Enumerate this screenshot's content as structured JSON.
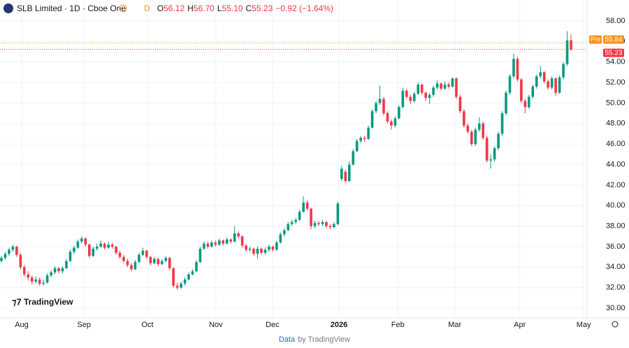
{
  "header": {
    "title": "SLB Limited · 1D · Cboe One",
    "flag": "D",
    "o_label": "O",
    "open": "56.12",
    "h_label": "H",
    "high": "56.70",
    "l_label": "L",
    "low": "55.10",
    "c_label": "C",
    "close": "55.23",
    "change": "−0.92 (−1.64%)"
  },
  "logo": "TradingView",
  "footer": {
    "link": "Data",
    "text": "by TradingView"
  },
  "chart_data": {
    "type": "candlestick",
    "up_color": "#089981",
    "down_color": "#f23645",
    "grid": true,
    "ylim": [
      29.05,
      60.04
    ],
    "yticks": [
      {
        "value": 30,
        "label": "30.00"
      },
      {
        "value": 32,
        "label": "32.00"
      },
      {
        "value": 34,
        "label": "34.00"
      },
      {
        "value": 36,
        "label": "36.00"
      },
      {
        "value": 38,
        "label": "38.00"
      },
      {
        "value": 40,
        "label": "40.00"
      },
      {
        "value": 42,
        "label": "42.00"
      },
      {
        "value": 44,
        "label": "44.00"
      },
      {
        "value": 46,
        "label": "46.00"
      },
      {
        "value": 48,
        "label": "48.00"
      },
      {
        "value": 50,
        "label": "50.00"
      },
      {
        "value": 52,
        "label": "52.00"
      },
      {
        "value": 54,
        "label": "54.00"
      },
      {
        "value": 56,
        "label": "56.00"
      },
      {
        "value": 58,
        "label": "58.00"
      }
    ],
    "xticks": [
      {
        "value": 5.3,
        "label": "Aug"
      },
      {
        "value": 21.6,
        "label": "Sep"
      },
      {
        "value": 38.2,
        "label": "Oct"
      },
      {
        "value": 56.1,
        "label": "Nov"
      },
      {
        "value": 70.9,
        "label": "Dec"
      },
      {
        "value": 88.3,
        "label": "2026"
      },
      {
        "value": 103.7,
        "label": "Feb"
      },
      {
        "value": 118.6,
        "label": "Mar"
      },
      {
        "value": 135.6,
        "label": "Apr"
      },
      {
        "value": 152.3,
        "label": "May"
      }
    ],
    "price_lines": [
      {
        "name": "Pre",
        "value": 55.84,
        "color": "#f7931a"
      },
      {
        "value": 55.23,
        "color": "#f23645"
      }
    ],
    "ohlc": [
      [
        34.6,
        35.1,
        34.4,
        34.9
      ],
      [
        34.9,
        35.5,
        34.7,
        35.3
      ],
      [
        35.3,
        35.9,
        35.1,
        35.7
      ],
      [
        35.7,
        36.2,
        35.5,
        36.0
      ],
      [
        36.0,
        36.1,
        35.0,
        35.2
      ],
      [
        35.2,
        35.4,
        33.8,
        34.0
      ],
      [
        34.0,
        34.2,
        33.1,
        33.3
      ],
      [
        33.3,
        33.6,
        32.7,
        33.0
      ],
      [
        33.0,
        33.2,
        32.3,
        32.6
      ],
      [
        32.6,
        33.1,
        32.4,
        32.8
      ],
      [
        32.8,
        33.0,
        32.2,
        32.4
      ],
      [
        32.4,
        32.8,
        32.2,
        32.5
      ],
      [
        32.5,
        33.4,
        32.4,
        33.2
      ],
      [
        33.2,
        33.7,
        33.0,
        33.5
      ],
      [
        33.5,
        34.1,
        33.3,
        33.9
      ],
      [
        33.9,
        34.0,
        33.4,
        33.6
      ],
      [
        33.6,
        34.1,
        33.4,
        33.9
      ],
      [
        33.9,
        34.8,
        33.8,
        34.6
      ],
      [
        34.6,
        35.7,
        34.5,
        35.5
      ],
      [
        35.5,
        36.1,
        35.3,
        35.9
      ],
      [
        35.9,
        36.7,
        35.8,
        36.5
      ],
      [
        36.5,
        37.0,
        36.3,
        36.8
      ],
      [
        36.8,
        36.9,
        36.0,
        36.2
      ],
      [
        36.2,
        36.3,
        34.9,
        35.1
      ],
      [
        35.1,
        36.0,
        35.0,
        35.8
      ],
      [
        35.8,
        36.3,
        35.6,
        36.0
      ],
      [
        36.0,
        36.6,
        35.9,
        36.3
      ],
      [
        36.3,
        36.4,
        35.7,
        35.9
      ],
      [
        35.9,
        36.5,
        35.8,
        36.2
      ],
      [
        36.2,
        36.4,
        35.8,
        36.0
      ],
      [
        36.0,
        36.1,
        35.2,
        35.4
      ],
      [
        35.4,
        35.6,
        34.8,
        35.0
      ],
      [
        35.0,
        35.2,
        34.4,
        34.6
      ],
      [
        34.6,
        34.8,
        34.0,
        34.2
      ],
      [
        34.2,
        34.4,
        33.6,
        33.8
      ],
      [
        33.8,
        34.7,
        33.7,
        34.5
      ],
      [
        34.5,
        35.4,
        34.4,
        35.2
      ],
      [
        35.2,
        35.9,
        35.1,
        35.6
      ],
      [
        35.6,
        35.7,
        34.8,
        35.0
      ],
      [
        35.0,
        35.1,
        34.2,
        34.4
      ],
      [
        34.4,
        35.0,
        34.3,
        34.8
      ],
      [
        34.8,
        34.9,
        34.1,
        34.3
      ],
      [
        34.3,
        34.8,
        34.2,
        34.6
      ],
      [
        34.6,
        35.1,
        34.5,
        34.9
      ],
      [
        34.9,
        35.0,
        33.7,
        33.9
      ],
      [
        33.9,
        34.0,
        32.0,
        32.2
      ],
      [
        32.2,
        32.5,
        31.8,
        32.0
      ],
      [
        32.0,
        32.6,
        31.9,
        32.4
      ],
      [
        32.4,
        33.0,
        32.2,
        32.8
      ],
      [
        32.8,
        33.5,
        32.7,
        33.3
      ],
      [
        33.3,
        33.8,
        33.2,
        33.6
      ],
      [
        33.6,
        34.7,
        33.5,
        34.5
      ],
      [
        34.5,
        36.0,
        34.4,
        35.8
      ],
      [
        35.8,
        36.5,
        35.7,
        36.3
      ],
      [
        36.3,
        36.5,
        35.8,
        36.0
      ],
      [
        36.0,
        36.6,
        35.9,
        36.4
      ],
      [
        36.4,
        36.6,
        36.0,
        36.2
      ],
      [
        36.2,
        36.8,
        36.1,
        36.6
      ],
      [
        36.6,
        36.7,
        36.1,
        36.3
      ],
      [
        36.3,
        36.9,
        36.2,
        36.7
      ],
      [
        36.7,
        36.8,
        36.3,
        36.5
      ],
      [
        36.5,
        38.0,
        36.4,
        37.3
      ],
      [
        37.3,
        37.5,
        36.8,
        37.0
      ],
      [
        37.0,
        37.1,
        35.9,
        36.1
      ],
      [
        36.1,
        36.3,
        35.5,
        35.7
      ],
      [
        35.7,
        36.0,
        35.5,
        35.8
      ],
      [
        35.8,
        35.9,
        35.1,
        35.3
      ],
      [
        35.3,
        36.0,
        34.8,
        35.8
      ],
      [
        35.8,
        35.9,
        35.2,
        35.4
      ],
      [
        35.4,
        35.9,
        35.2,
        35.7
      ],
      [
        35.7,
        36.2,
        35.5,
        36.0
      ],
      [
        36.0,
        36.1,
        35.5,
        35.7
      ],
      [
        35.7,
        36.6,
        35.6,
        36.4
      ],
      [
        36.4,
        37.4,
        36.3,
        37.2
      ],
      [
        37.2,
        37.8,
        37.0,
        37.6
      ],
      [
        37.6,
        38.4,
        37.5,
        38.2
      ],
      [
        38.2,
        38.6,
        38.0,
        38.4
      ],
      [
        38.4,
        38.8,
        38.2,
        38.6
      ],
      [
        38.6,
        39.6,
        38.5,
        39.4
      ],
      [
        39.4,
        40.9,
        39.3,
        40.3
      ],
      [
        40.3,
        40.5,
        39.5,
        39.7
      ],
      [
        39.7,
        39.8,
        37.7,
        38.0
      ],
      [
        38.0,
        38.5,
        37.8,
        38.3
      ],
      [
        38.3,
        38.5,
        38.0,
        38.2
      ],
      [
        38.2,
        38.6,
        38.0,
        38.4
      ],
      [
        38.4,
        38.5,
        37.8,
        38.0
      ],
      [
        38.0,
        38.2,
        37.7,
        37.9
      ],
      [
        37.9,
        38.4,
        37.8,
        38.2
      ],
      [
        38.2,
        40.4,
        38.1,
        40.2
      ],
      [
        42.6,
        43.9,
        42.4,
        43.6
      ],
      [
        43.3,
        43.5,
        42.2,
        42.4
      ],
      [
        42.4,
        44.3,
        42.3,
        44.0
      ],
      [
        44.0,
        45.5,
        43.9,
        45.3
      ],
      [
        45.3,
        46.5,
        45.2,
        46.3
      ],
      [
        46.3,
        46.8,
        46.1,
        46.6
      ],
      [
        46.6,
        46.8,
        46.2,
        46.5
      ],
      [
        46.5,
        47.8,
        46.4,
        47.6
      ],
      [
        47.6,
        49.4,
        47.5,
        49.2
      ],
      [
        49.2,
        50.2,
        49.0,
        50.0
      ],
      [
        50.0,
        51.7,
        49.8,
        50.4
      ],
      [
        50.4,
        50.6,
        48.8,
        49.0
      ],
      [
        49.0,
        49.2,
        48.0,
        48.2
      ],
      [
        48.2,
        48.4,
        47.4,
        47.8
      ],
      [
        47.8,
        48.7,
        47.6,
        48.5
      ],
      [
        48.5,
        49.8,
        48.4,
        49.6
      ],
      [
        49.6,
        51.5,
        49.5,
        51.2
      ],
      [
        51.2,
        51.4,
        50.4,
        50.6
      ],
      [
        50.6,
        50.8,
        49.9,
        50.2
      ],
      [
        50.2,
        51.1,
        50.0,
        50.9
      ],
      [
        50.9,
        52.0,
        50.8,
        51.8
      ],
      [
        51.8,
        51.9,
        50.8,
        51.0
      ],
      [
        51.0,
        51.1,
        50.2,
        50.5
      ],
      [
        50.5,
        51.0,
        49.9,
        50.8
      ],
      [
        50.8,
        51.7,
        50.6,
        51.5
      ],
      [
        51.5,
        52.2,
        51.3,
        51.9
      ],
      [
        51.9,
        52.0,
        51.2,
        51.4
      ],
      [
        51.4,
        52.1,
        51.3,
        51.8
      ],
      [
        51.8,
        52.0,
        51.4,
        51.6
      ],
      [
        51.6,
        52.5,
        51.5,
        52.4
      ],
      [
        52.4,
        52.5,
        50.4,
        50.6
      ],
      [
        50.6,
        50.8,
        49.0,
        49.2
      ],
      [
        49.2,
        49.4,
        47.6,
        47.8
      ],
      [
        47.8,
        48.0,
        47.0,
        47.2
      ],
      [
        47.2,
        47.4,
        45.8,
        46.0
      ],
      [
        46.0,
        47.6,
        45.8,
        47.4
      ],
      [
        47.4,
        48.6,
        47.2,
        48.0
      ],
      [
        48.0,
        48.2,
        46.4,
        46.6
      ],
      [
        46.6,
        46.8,
        44.2,
        44.4
      ],
      [
        44.4,
        45.0,
        43.6,
        44.5
      ],
      [
        44.5,
        45.8,
        44.3,
        45.6
      ],
      [
        45.6,
        47.2,
        45.4,
        47.0
      ],
      [
        47.0,
        49.2,
        46.8,
        49.0
      ],
      [
        49.0,
        51.2,
        48.8,
        51.0
      ],
      [
        51.0,
        52.8,
        50.8,
        52.6
      ],
      [
        52.6,
        54.8,
        52.4,
        54.3
      ],
      [
        54.3,
        54.5,
        52.1,
        52.3
      ],
      [
        52.3,
        52.4,
        50.0,
        50.2
      ],
      [
        50.2,
        50.4,
        49.0,
        49.6
      ],
      [
        49.6,
        50.8,
        49.4,
        50.6
      ],
      [
        50.6,
        51.8,
        50.4,
        51.6
      ],
      [
        51.6,
        52.8,
        51.4,
        52.6
      ],
      [
        52.6,
        53.6,
        52.4,
        53.0
      ],
      [
        53.0,
        53.1,
        51.9,
        52.1
      ],
      [
        52.1,
        52.3,
        51.3,
        51.5
      ],
      [
        51.5,
        52.6,
        51.3,
        52.4
      ],
      [
        52.4,
        52.5,
        50.7,
        51.0
      ],
      [
        51.0,
        52.7,
        50.9,
        52.5
      ],
      [
        52.5,
        54.0,
        52.3,
        53.8
      ],
      [
        53.8,
        57.0,
        53.6,
        56.1
      ],
      [
        56.12,
        56.7,
        55.1,
        55.23
      ]
    ]
  }
}
